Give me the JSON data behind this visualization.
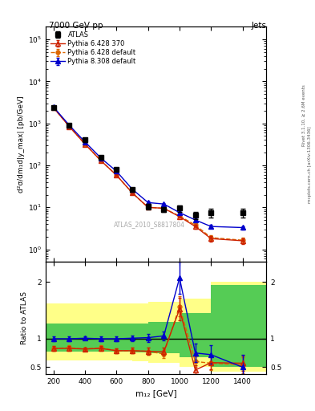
{
  "title_left": "7000 GeV pp",
  "title_right": "Jets",
  "right_label1": "Rivet 3.1.10, ≥ 2.6M events",
  "right_label2": "mcplots.cern.ch [arXiv:1306.3436]",
  "watermark": "ATLAS_2010_S8817804",
  "ylabel_main": "d²σ/dm₁d|y_max| [pb/GeV]",
  "ylabel_ratio": "Ratio to ATLAS",
  "xlabel": "m₁₂ [GeV]",
  "x_data": [
    200,
    300,
    400,
    500,
    600,
    700,
    800,
    900,
    1000,
    1100,
    1200,
    1400
  ],
  "atlas_y": [
    2400,
    900,
    400,
    155,
    80,
    27,
    10.5,
    9.0,
    9.5,
    6.5,
    7.5,
    7.5
  ],
  "atlas_yerr_lo": [
    180,
    70,
    35,
    12,
    7,
    2.5,
    1.5,
    1.2,
    1.8,
    1.2,
    1.8,
    1.8
  ],
  "atlas_yerr_hi": [
    180,
    70,
    35,
    12,
    7,
    2.5,
    1.5,
    1.2,
    1.8,
    1.2,
    1.8,
    1.8
  ],
  "py6_370_y": [
    2350,
    840,
    320,
    130,
    58,
    22,
    10,
    9.5,
    6.0,
    3.5,
    1.8,
    1.6
  ],
  "py6_370_yerr": [
    40,
    15,
    8,
    4,
    2.5,
    1.2,
    0.6,
    0.6,
    0.4,
    0.4,
    0.25,
    0.25
  ],
  "py6_def_y": [
    2350,
    840,
    320,
    130,
    58,
    22,
    10,
    9.5,
    6.2,
    3.8,
    1.9,
    1.65
  ],
  "py6_def_yerr": [
    40,
    15,
    8,
    4,
    2.5,
    1.2,
    0.6,
    0.6,
    0.4,
    0.4,
    0.25,
    0.25
  ],
  "py8_def_y": [
    2450,
    900,
    360,
    150,
    72,
    27,
    13,
    12,
    7.5,
    5.0,
    3.5,
    3.3
  ],
  "py8_def_yerr": [
    45,
    18,
    9,
    5,
    3,
    1.5,
    0.7,
    0.7,
    0.5,
    0.4,
    0.3,
    0.3
  ],
  "ratio_py6_370": [
    0.83,
    0.83,
    0.82,
    0.83,
    0.79,
    0.79,
    0.78,
    0.77,
    1.52,
    0.45,
    0.58,
    0.57
  ],
  "ratio_py6_370_err": [
    0.04,
    0.04,
    0.03,
    0.04,
    0.04,
    0.05,
    0.06,
    0.07,
    0.2,
    0.09,
    0.12,
    0.14
  ],
  "ratio_py6_def": [
    0.83,
    0.84,
    0.82,
    0.84,
    0.79,
    0.79,
    0.78,
    0.73,
    1.57,
    0.6,
    0.57,
    0.54
  ],
  "ratio_py6_def_err": [
    0.04,
    0.04,
    0.03,
    0.04,
    0.04,
    0.05,
    0.06,
    0.07,
    0.18,
    0.09,
    0.12,
    0.14
  ],
  "ratio_py8_def": [
    1.0,
    1.0,
    1.01,
    1.0,
    1.0,
    1.01,
    1.02,
    1.05,
    2.07,
    0.75,
    0.72,
    0.5
  ],
  "ratio_py8_def_err": [
    0.04,
    0.04,
    0.03,
    0.04,
    0.04,
    0.05,
    0.07,
    0.08,
    0.28,
    0.16,
    0.16,
    0.22
  ],
  "color_py6_370": "#cc2200",
  "color_py6_def": "#dd6600",
  "color_py8_def": "#0000cc",
  "xlim": [
    150,
    1550
  ],
  "ylim_main": [
    0.5,
    200000
  ],
  "ylim_ratio": [
    0.38,
    2.35
  ],
  "band_yellow_x": [
    150,
    600,
    700,
    800,
    1000,
    1200,
    1550
  ],
  "band_yellow_lo": [
    0.62,
    0.62,
    0.6,
    0.58,
    0.5,
    0.42,
    0.42
  ],
  "band_yellow_hi": [
    1.62,
    1.62,
    1.62,
    1.65,
    1.7,
    2.0,
    2.0
  ],
  "band_green_x": [
    150,
    600,
    700,
    800,
    1000,
    1200,
    1550
  ],
  "band_green_lo": [
    0.77,
    0.77,
    0.76,
    0.74,
    0.68,
    0.5,
    0.5
  ],
  "band_green_hi": [
    1.27,
    1.27,
    1.27,
    1.3,
    1.45,
    1.95,
    1.95
  ]
}
